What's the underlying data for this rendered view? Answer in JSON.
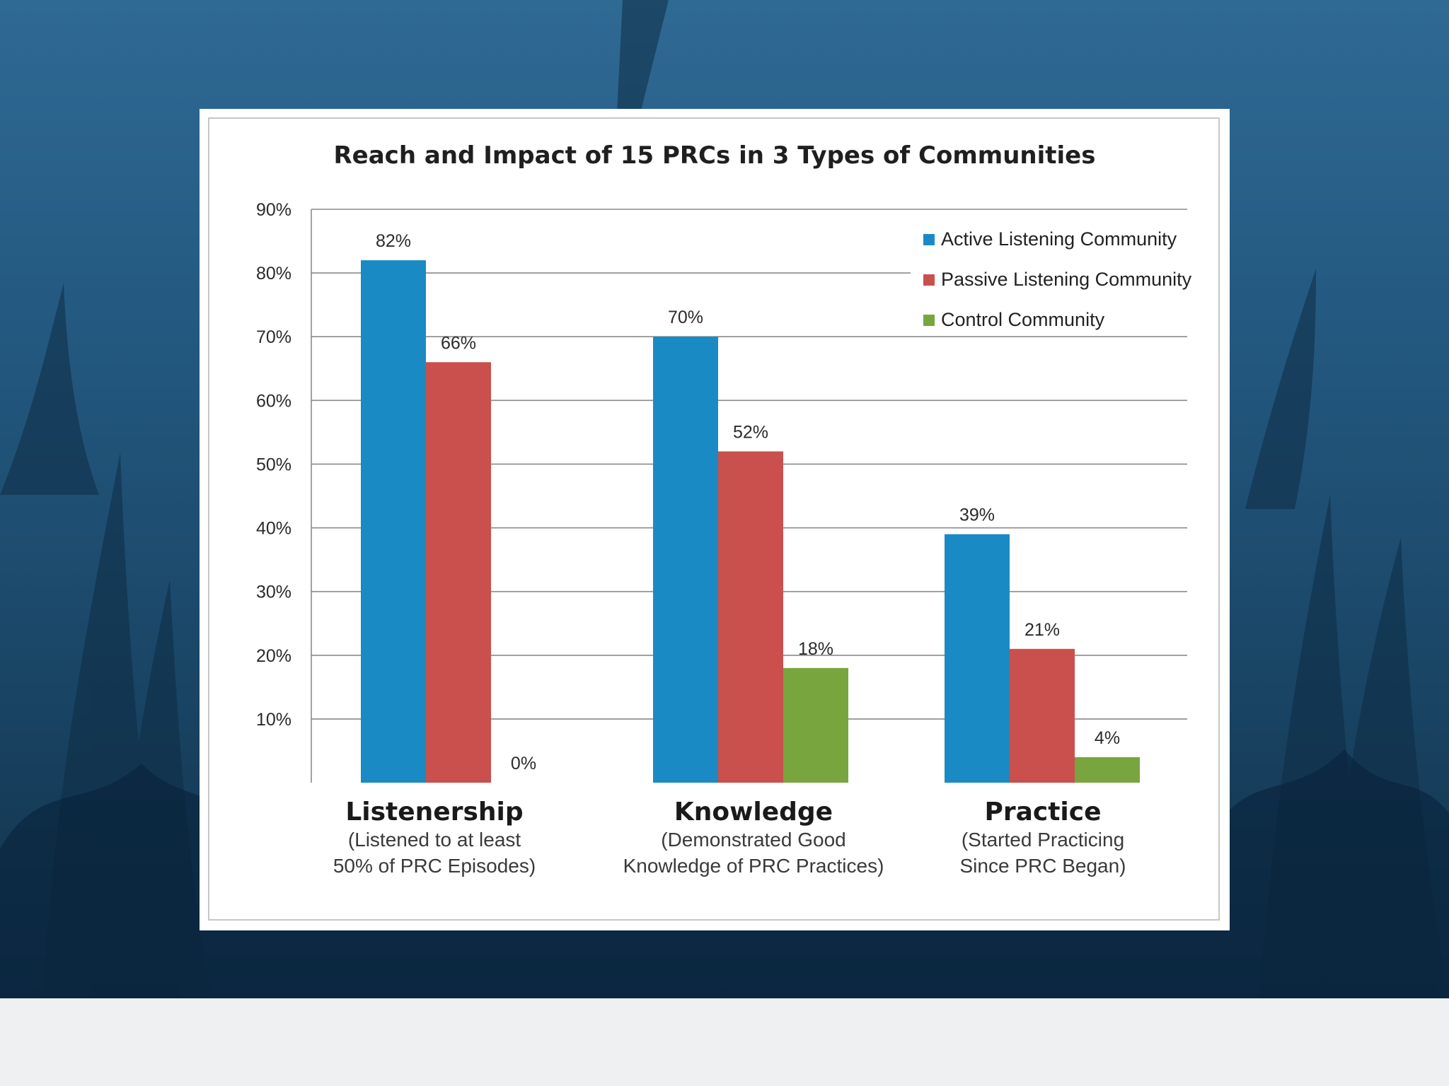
{
  "chart_data": {
    "type": "bar",
    "title": "Reach and Impact of 15 PRCs in 3 Types of Communities",
    "categories": [
      {
        "name": "Listenership",
        "sub": [
          "(Listened to at least",
          "50% of PRC Episodes)"
        ]
      },
      {
        "name": "Knowledge",
        "sub": [
          "(Demonstrated Good",
          "Knowledge of PRC Practices)"
        ]
      },
      {
        "name": "Practice",
        "sub": [
          "(Started Practicing",
          "Since PRC Began)"
        ]
      }
    ],
    "series": [
      {
        "name": "Active Listening Community",
        "color": "#1a8ac4",
        "values": [
          82,
          70,
          39
        ],
        "labels": [
          "82%",
          "70%",
          "39%"
        ]
      },
      {
        "name": "Passive Listening Community",
        "color": "#c9504c",
        "values": [
          66,
          52,
          21
        ],
        "labels": [
          "66%",
          "52%",
          "21%"
        ]
      },
      {
        "name": "Control Community",
        "color": "#78a53e",
        "values": [
          0,
          18,
          4
        ],
        "labels": [
          "0%",
          "18%",
          "4%"
        ]
      }
    ],
    "y_ticks": [
      "10%",
      "20%",
      "30%",
      "40%",
      "50%",
      "60%",
      "70%",
      "80%",
      "90%"
    ],
    "ylim": [
      0,
      90
    ],
    "grid": true,
    "legend_position": "top-right",
    "background": {
      "top": "#2f6a94",
      "bottom": "#10304a",
      "strip": "#eff0f2"
    }
  }
}
